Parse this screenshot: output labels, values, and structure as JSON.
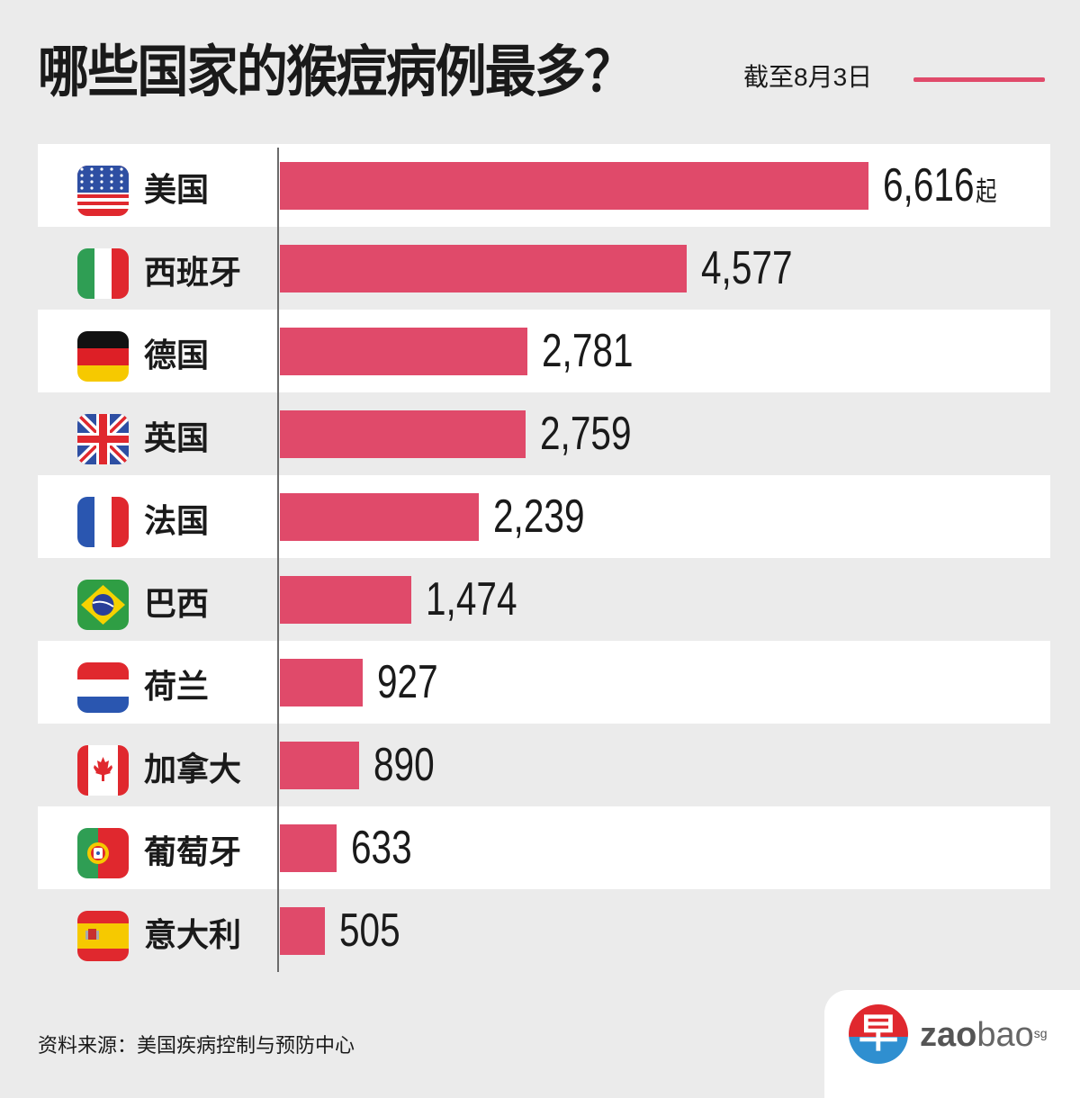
{
  "header": {
    "title": "哪些国家的猴痘病例最多？",
    "subtitle": "截至8月3日",
    "accent_color": "#e04a6a"
  },
  "unit_suffix": "起",
  "rows": [
    {
      "country": "美国",
      "flag": "us-flag-icon",
      "value": 6616,
      "label": "6,616"
    },
    {
      "country": "西班牙",
      "flag": "italy-flag-icon",
      "value": 4577,
      "label": "4,577"
    },
    {
      "country": "德国",
      "flag": "germany-flag-icon",
      "value": 2781,
      "label": "2,781"
    },
    {
      "country": "英国",
      "flag": "uk-flag-icon",
      "value": 2759,
      "label": "2,759"
    },
    {
      "country": "法国",
      "flag": "france-flag-icon",
      "value": 2239,
      "label": "2,239"
    },
    {
      "country": "巴西",
      "flag": "brazil-flag-icon",
      "value": 1474,
      "label": "1,474"
    },
    {
      "country": "荷兰",
      "flag": "netherlands-flag-icon",
      "value": 927,
      "label": "927"
    },
    {
      "country": "加拿大",
      "flag": "canada-flag-icon",
      "value": 890,
      "label": "890"
    },
    {
      "country": "葡萄牙",
      "flag": "portugal-flag-icon",
      "value": 633,
      "label": "633"
    },
    {
      "country": "意大利",
      "flag": "spain-flag-icon",
      "value": 505,
      "label": "505"
    }
  ],
  "footer": {
    "source": "资料来源：美国疾病控制与预防中心",
    "logo_glyph": "早",
    "logo_bold": "zao",
    "logo_light": "bao",
    "logo_sup": "sg"
  },
  "chart_data": {
    "type": "bar",
    "orientation": "horizontal",
    "title": "哪些国家的猴痘病例最多？",
    "subtitle": "截至8月3日",
    "categories": [
      "美国",
      "西班牙",
      "德国",
      "英国",
      "法国",
      "巴西",
      "荷兰",
      "加拿大",
      "葡萄牙",
      "意大利"
    ],
    "values": [
      6616,
      4577,
      2781,
      2759,
      2239,
      1474,
      927,
      890,
      633,
      505
    ],
    "value_labels": [
      "6,616起",
      "4,577",
      "2,781",
      "2,759",
      "2,239",
      "1,474",
      "927",
      "890",
      "633",
      "505"
    ],
    "xlabel": "",
    "ylabel": "",
    "unit": "起",
    "grid": false,
    "legend": null,
    "bar_color": "#e04a6a",
    "source": "资料来源：美国疾病控制与预防中心"
  }
}
